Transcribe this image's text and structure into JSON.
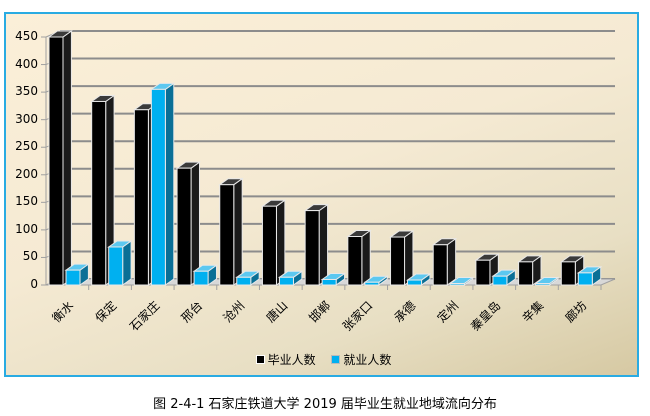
{
  "chart_data": {
    "type": "bar",
    "style": "3d-clustered-column",
    "title": "",
    "caption": "图 2-4-1 石家庄铁道大学 2019 届毕业生就业地域流向分布",
    "xlabel": "",
    "ylabel": "",
    "ylim": [
      0,
      450
    ],
    "yticks": [
      0,
      50,
      100,
      150,
      200,
      250,
      300,
      350,
      400,
      450
    ],
    "grid": true,
    "legend_position": "bottom",
    "categories": [
      "衡水",
      "保定",
      "石家庄",
      "邢台",
      "沧州",
      "唐山",
      "邯郸",
      "张家口",
      "承德",
      "定州",
      "秦皇岛",
      "辛集",
      "廊坊"
    ],
    "series": [
      {
        "name": "毕业人数",
        "color": "#000000",
        "values": [
          450,
          333,
          318,
          212,
          182,
          143,
          135,
          88,
          87,
          73,
          45,
          42,
          42
        ]
      },
      {
        "name": "就业人数",
        "color": "#00b0f0",
        "values": [
          27,
          69,
          355,
          25,
          14,
          14,
          10,
          5,
          9,
          2,
          16,
          2,
          22
        ]
      }
    ]
  },
  "legend": {
    "items": [
      {
        "label": "毕业人数",
        "color": "#000000"
      },
      {
        "label": "就业人数",
        "color": "#00b0f0"
      }
    ]
  },
  "colors": {
    "frame_border": "#29abe2",
    "gridline": "#8c8c8c",
    "blue_side": "#0a6f96"
  }
}
